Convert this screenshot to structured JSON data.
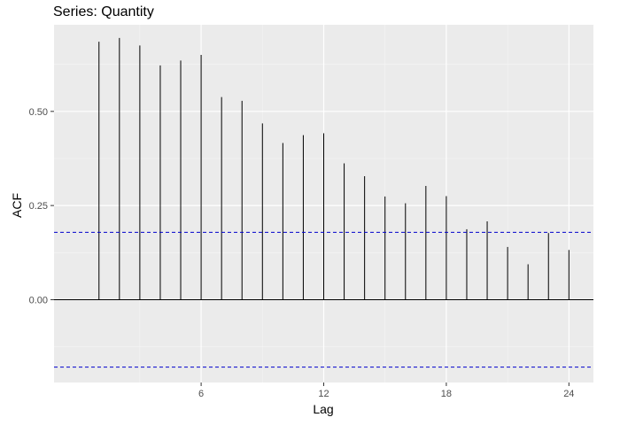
{
  "chart_data": {
    "type": "bar",
    "title": "Series: Quantity",
    "xlabel": "Lag",
    "ylabel": "ACF",
    "x": [
      1,
      2,
      3,
      4,
      5,
      6,
      7,
      8,
      9,
      10,
      11,
      12,
      13,
      14,
      15,
      16,
      17,
      18,
      19,
      20,
      21,
      22,
      23,
      24
    ],
    "values": [
      0.685,
      0.695,
      0.675,
      0.622,
      0.635,
      0.65,
      0.538,
      0.528,
      0.468,
      0.416,
      0.437,
      0.442,
      0.362,
      0.328,
      0.274,
      0.256,
      0.302,
      0.275,
      0.187,
      0.208,
      0.14,
      0.094,
      0.177,
      0.132
    ],
    "xlim": [
      -1.2,
      25.2
    ],
    "ylim": [
      -0.22,
      0.73
    ],
    "x_ticks": [
      6,
      12,
      18,
      24
    ],
    "y_ticks": [
      0,
      0.25,
      0.5
    ],
    "x_tick_labels": [
      "6",
      "12",
      "18",
      "24"
    ],
    "y_tick_labels": [
      "0.00",
      "0.25",
      "0.50"
    ],
    "confidence_bounds": [
      0.179,
      -0.179
    ],
    "confidence_line_color": "#0000cc",
    "panel_background": "#ebebeb",
    "grid": true
  }
}
